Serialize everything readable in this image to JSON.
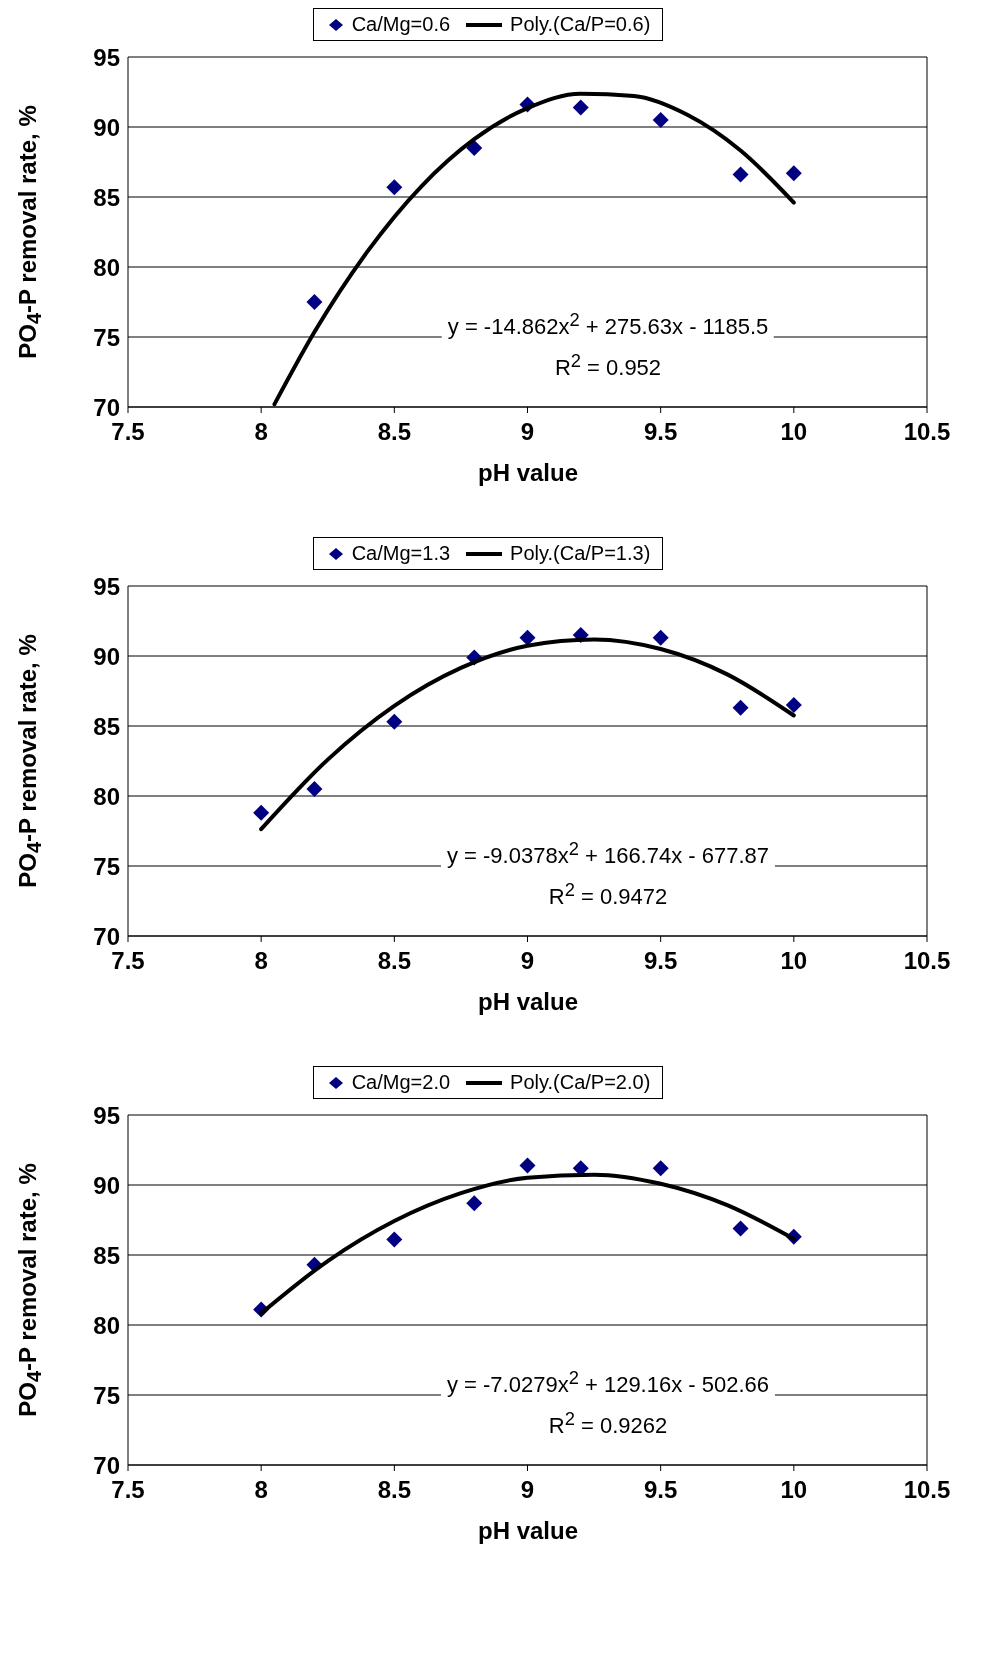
{
  "chart_data": [
    {
      "type": "scatter",
      "xlabel": "pH value",
      "ylabel": "PO$_{4}$-P removal rate, %",
      "xlim": [
        7.5,
        10.5
      ],
      "xticks": [
        7.5,
        8,
        8.5,
        9,
        9.5,
        10,
        10.5
      ],
      "ylim": [
        70,
        95
      ],
      "yticks": [
        70,
        75,
        80,
        85,
        90,
        95
      ],
      "grid": "y",
      "legend": "top",
      "annotations": [
        "y = -14.862x$^{2}$ + 275.63x - 1185.5",
        "R$^{2}$ = 0.952"
      ],
      "series": [
        {
          "name": "Ca/Mg=0.6",
          "color": "#000080",
          "marker": "diamond",
          "x": [
            8.2,
            8.5,
            8.8,
            9.0,
            9.2,
            9.5,
            9.8,
            10
          ],
          "values": [
            77.5,
            85.7,
            88.5,
            91.6,
            91.4,
            90.5,
            86.6,
            86.7
          ]
        },
        {
          "name": "Poly.(Ca/P=0.6)",
          "type": "line",
          "marker": "none",
          "color": "#000000",
          "x": [
            8.05,
            8.2,
            8.4,
            8.6,
            8.8,
            9.0,
            9.2,
            9.4,
            9.6,
            9.8,
            10
          ],
          "values": [
            70.2,
            75.35,
            81.13,
            85.73,
            89.13,
            91.35,
            92.38,
            92.21,
            90.87,
            88.32,
            84.6
          ]
        }
      ]
    },
    {
      "type": "scatter",
      "xlabel": "pH value",
      "ylabel": "PO$_{4}$-P removal rate, %",
      "xlim": [
        7.5,
        10.5
      ],
      "xticks": [
        7.5,
        8,
        8.5,
        9,
        9.5,
        10,
        10.5
      ],
      "ylim": [
        70,
        95
      ],
      "yticks": [
        70,
        75,
        80,
        85,
        90,
        95
      ],
      "grid": "y",
      "legend": "top",
      "annotations": [
        "y = -9.0378x$^{2}$ + 166.74x - 677.87",
        "R$^{2}$ = 0.9472"
      ],
      "series": [
        {
          "name": "Ca/Mg=1.3",
          "color": "#000080",
          "marker": "diamond",
          "x": [
            8.0,
            8.2,
            8.5,
            8.8,
            9.0,
            9.2,
            9.5,
            9.8,
            10
          ],
          "values": [
            78.8,
            80.5,
            85.3,
            89.9,
            91.3,
            91.5,
            91.3,
            86.3,
            86.5
          ]
        },
        {
          "name": "Poly.(Ca/P=1.3)",
          "type": "line",
          "marker": "none",
          "color": "#000000",
          "x": [
            8.0,
            8.25,
            8.5,
            8.75,
            9.0,
            9.25,
            9.5,
            9.75,
            10
          ],
          "values": [
            77.63,
            82.6,
            86.44,
            89.15,
            90.73,
            91.18,
            90.5,
            88.69,
            85.75
          ]
        }
      ]
    },
    {
      "type": "scatter",
      "xlabel": "pH value",
      "ylabel": "PO$_{4}$-P removal rate, %",
      "xlim": [
        7.5,
        10.5
      ],
      "xticks": [
        7.5,
        8,
        8.5,
        9,
        9.5,
        10,
        10.5
      ],
      "ylim": [
        70,
        95
      ],
      "yticks": [
        70,
        75,
        80,
        85,
        90,
        95
      ],
      "grid": "y",
      "legend": "top",
      "annotations": [
        "y = -7.0279x$^{2}$ + 129.16x - 502.66",
        "R$^{2}$ = 0.9262"
      ],
      "series": [
        {
          "name": "Ca/Mg=2.0",
          "color": "#000080",
          "marker": "diamond",
          "x": [
            8.0,
            8.2,
            8.5,
            8.8,
            9.0,
            9.2,
            9.5,
            9.8,
            10
          ],
          "values": [
            81.1,
            84.3,
            86.1,
            88.7,
            91.4,
            91.2,
            91.2,
            86.9,
            86.3
          ]
        },
        {
          "name": "Poly.(Ca/P=2.0)",
          "type": "line",
          "marker": "none",
          "color": "#000000",
          "x": [
            8.0,
            8.25,
            8.5,
            8.75,
            9.0,
            9.25,
            9.5,
            9.75,
            10
          ],
          "values": [
            80.83,
            84.57,
            87.43,
            89.42,
            90.52,
            90.74,
            90.09,
            88.56,
            86.15
          ]
        }
      ]
    }
  ]
}
